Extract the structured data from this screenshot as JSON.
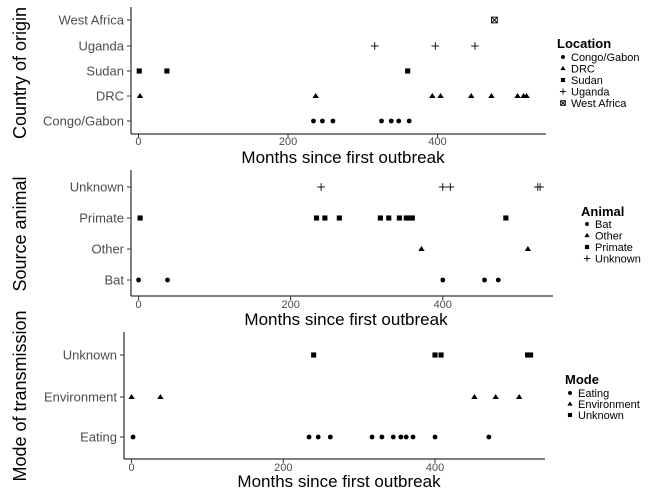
{
  "chart_data": [
    {
      "type": "scatter",
      "xlabel": "Months since first outbreak",
      "ylabel": "Country of origin",
      "xlim": [
        -10,
        545
      ],
      "xticks": [
        0,
        200,
        400
      ],
      "categories": [
        "Congo/Gabon",
        "DRC",
        "Sudan",
        "Uganda",
        "West Africa"
      ],
      "legend_title": "Location",
      "legend_placement": "right",
      "grid": false,
      "series": [
        {
          "name": "Congo/Gabon",
          "marker": "circle",
          "x": [
            234,
            246,
            260,
            325,
            338,
            348,
            362
          ]
        },
        {
          "name": "DRC",
          "marker": "triangle",
          "x": [
            2,
            237,
            393,
            404,
            445,
            472,
            507,
            515,
            519
          ]
        },
        {
          "name": "Sudan",
          "marker": "square",
          "x": [
            1,
            38,
            360
          ]
        },
        {
          "name": "Uganda",
          "marker": "plus",
          "x": [
            316,
            397,
            450
          ]
        },
        {
          "name": "West Africa",
          "marker": "boxcross",
          "x": [
            476
          ]
        }
      ]
    },
    {
      "type": "scatter",
      "xlabel": "Months since first outbreak",
      "ylabel": "Source animal",
      "xlim": [
        -10,
        545
      ],
      "xticks": [
        0,
        200,
        400
      ],
      "categories": [
        "Bat",
        "Other",
        "Primate",
        "Unknown"
      ],
      "legend_title": "Animal",
      "legend_placement": "right",
      "grid": false,
      "series": [
        {
          "name": "Bat",
          "marker": "circle",
          "x": [
            0,
            38,
            400,
            455,
            473
          ]
        },
        {
          "name": "Other",
          "marker": "triangle",
          "x": [
            372,
            512
          ]
        },
        {
          "name": "Primate",
          "marker": "square",
          "x": [
            2,
            234,
            245,
            264,
            318,
            329,
            343,
            352,
            356,
            360,
            483
          ]
        },
        {
          "name": "Unknown",
          "marker": "plus",
          "x": [
            240,
            400,
            410,
            525,
            528
          ]
        }
      ]
    },
    {
      "type": "scatter",
      "xlabel": "Months since first outbreak",
      "ylabel": "Mode of transmission",
      "xlim": [
        -10,
        545
      ],
      "xticks": [
        0,
        200,
        400
      ],
      "categories": [
        "Eating",
        "Environment",
        "Unknown"
      ],
      "legend_title": "Mode",
      "legend_placement": "right",
      "grid": false,
      "series": [
        {
          "name": "Eating",
          "marker": "circle",
          "x": [
            2,
            234,
            246,
            262,
            317,
            330,
            345,
            355,
            362,
            371,
            400,
            471
          ]
        },
        {
          "name": "Environment",
          "marker": "triangle",
          "x": [
            0,
            38,
            452,
            480,
            511
          ]
        },
        {
          "name": "Unknown",
          "marker": "square",
          "x": [
            240,
            400,
            408,
            522,
            526
          ]
        }
      ]
    }
  ]
}
